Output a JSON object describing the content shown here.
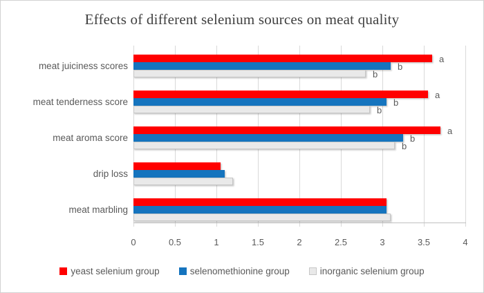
{
  "title": "Effects of different selenium sources on meat quality",
  "chart_data": {
    "type": "bar",
    "orientation": "horizontal",
    "title": "Effects of different selenium sources on meat quality",
    "categories": [
      "meat juiciness scores",
      "meat tenderness score",
      "meat aroma score",
      "drip loss",
      "meat marbling"
    ],
    "series": [
      {
        "name": "yeast selenium group",
        "color": "#ff0000",
        "values": [
          3.6,
          3.55,
          3.7,
          1.05,
          3.05
        ],
        "point_labels": [
          "a",
          "a",
          "a",
          "",
          ""
        ]
      },
      {
        "name": "selenomethionine group",
        "color": "#1574be",
        "values": [
          3.1,
          3.05,
          3.25,
          1.1,
          3.05
        ],
        "point_labels": [
          "b",
          "b",
          "b",
          "",
          ""
        ]
      },
      {
        "name": "inorganic selenium group",
        "color": "#e9e9e9",
        "border_color": "#c6c6c6",
        "values": [
          2.8,
          2.85,
          3.15,
          1.2,
          3.1
        ],
        "point_labels": [
          "b",
          "b",
          "b",
          "",
          ""
        ]
      }
    ],
    "xlim": [
      0,
      4
    ],
    "xticks": [
      0,
      0.5,
      1,
      1.5,
      2,
      2.5,
      3,
      3.5,
      4
    ],
    "xtick_labels": [
      "0",
      "0.5",
      "1",
      "1.5",
      "2",
      "2.5",
      "3",
      "3.5",
      "4"
    ],
    "grid": true,
    "legend_position": "bottom"
  },
  "colors": {
    "gridline": "#d9d9d9",
    "axis_line": "#bfbfbf",
    "text": "#595959",
    "title_text": "#404040",
    "frame_border": "#d2d2d2",
    "background": "#ffffff"
  }
}
